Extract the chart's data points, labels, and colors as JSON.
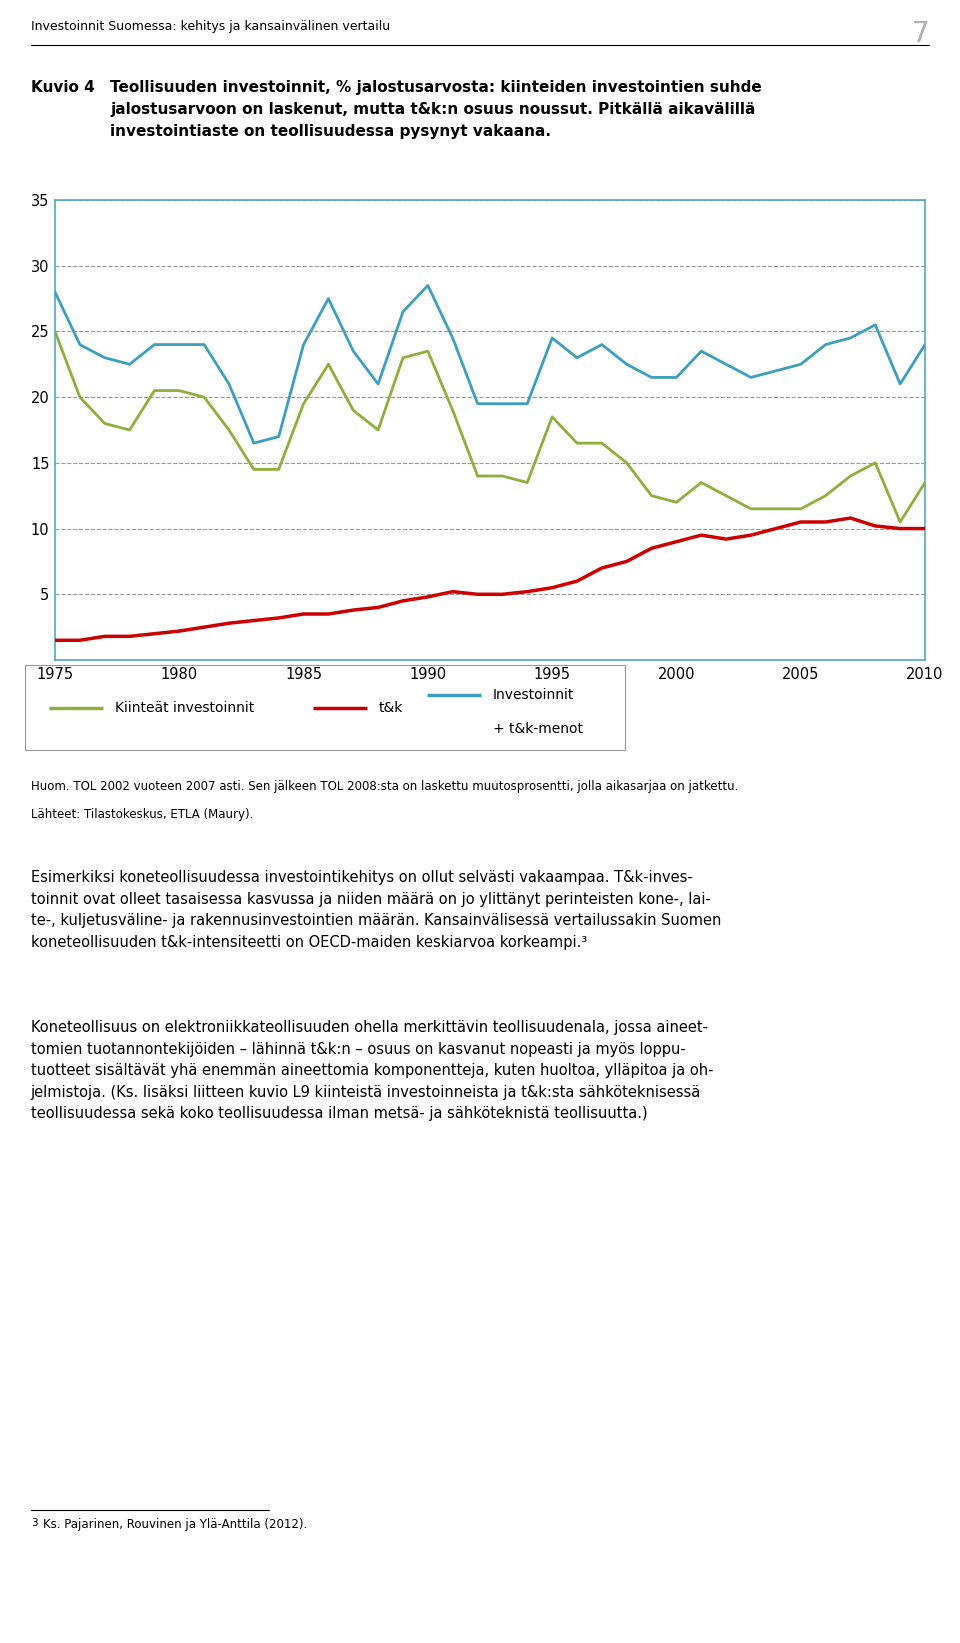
{
  "header": "Investoinnit Suomessa: kehitys ja kansainvälinen vertailu",
  "page_number": "7",
  "figure_label": "Kuvio 4",
  "figure_title_line1": "Teollisuuden investoinnit, % jalostusarvosta: kiinteiden investointien suhde",
  "figure_title_line2": "jalostusarvoon on laskenut, mutta t&k:n osuus noussut. Pitkällä aikavälillä",
  "figure_title_line3": "investointiaste on teollisuudessa pysynyt vakaana.",
  "years": [
    1975,
    1976,
    1977,
    1978,
    1979,
    1980,
    1981,
    1982,
    1983,
    1984,
    1985,
    1986,
    1987,
    1988,
    1989,
    1990,
    1991,
    1992,
    1993,
    1994,
    1995,
    1996,
    1997,
    1998,
    1999,
    2000,
    2001,
    2002,
    2003,
    2004,
    2005,
    2006,
    2007,
    2008,
    2009,
    2010
  ],
  "kiinteat": [
    25.0,
    20.0,
    18.0,
    17.5,
    20.5,
    20.5,
    20.0,
    17.5,
    14.5,
    14.5,
    19.5,
    22.5,
    19.0,
    17.5,
    23.0,
    23.5,
    19.0,
    14.0,
    14.0,
    13.5,
    18.5,
    16.5,
    16.5,
    15.0,
    12.5,
    12.0,
    13.5,
    12.5,
    11.5,
    11.5,
    11.5,
    12.5,
    14.0,
    15.0,
    10.5,
    13.5
  ],
  "tk": [
    1.5,
    1.5,
    1.8,
    1.8,
    2.0,
    2.2,
    2.5,
    2.8,
    3.0,
    3.2,
    3.5,
    3.5,
    3.8,
    4.0,
    4.5,
    4.8,
    5.2,
    5.0,
    5.0,
    5.2,
    5.5,
    6.0,
    7.0,
    7.5,
    8.5,
    9.0,
    9.5,
    9.2,
    9.5,
    10.0,
    10.5,
    10.5,
    10.8,
    10.2,
    10.0,
    10.0
  ],
  "investoinnit_tk": [
    28.0,
    24.0,
    23.0,
    22.5,
    24.0,
    24.0,
    24.0,
    21.0,
    16.5,
    17.0,
    24.0,
    27.5,
    23.5,
    21.0,
    26.5,
    28.5,
    24.5,
    19.5,
    19.5,
    19.5,
    24.5,
    23.0,
    24.0,
    22.5,
    21.5,
    21.5,
    23.5,
    22.5,
    21.5,
    22.0,
    22.5,
    24.0,
    24.5,
    25.5,
    21.0,
    24.0
  ],
  "ylim": [
    0,
    35
  ],
  "yticks": [
    0,
    5,
    10,
    15,
    20,
    25,
    30,
    35
  ],
  "xticks": [
    1975,
    1980,
    1985,
    1990,
    1995,
    2000,
    2005,
    2010
  ],
  "color_kiinteat": "#8faf3c",
  "color_tk": "#cc0000",
  "color_investoinnit": "#3d9fbf",
  "legend_label_kiinteat": "Kiinteät investoinnit",
  "legend_label_tk": "t&k",
  "legend_label_investoinnit": "Investoinnit\n+ t&k-menot",
  "note1": "Huom. TOL 2002 vuoteen 2007 asti. Sen jälkeen TOL 2008:sta on laskettu muutosprosentti, jolla aikasarjaa on jatkettu.",
  "note2": "Lähteet: Tilastokeskus, ETLA (Maury).",
  "body_text1": "Esimerkiksi koneteollisuudessa investointikehitys on ollut selvästi vakaampaa. T&k-inves-\ntoinnit ovat olleet tasaisessa kasvussa ja niiden määrä on jo ylittänyt perinteisten kone-, lai-\nte-, kuljetusväline- ja rakennusinvestointien määrän. Kansainvälisessä vertailussakin Suomen\nkoneteollisuuden t&k-intensiteetti on OECD-maiden keskiarvoa korkeampi.³",
  "body_text2": "Koneteollisuus on elektroniikkateollisuuden ohella merkittävin teollisuudenala, jossa aineet-\ntomien tuotannontekijöiden – lähinnä t&k:n – osuus on kasvanut nopeasti ja myös loppu-\ntuotteet sisältävät yhä enemmän aineettomia komponentteja, kuten huoltoa, ylläpitoa ja oh-\njelmistoja. (Ks. lisäksi liitteen kuvio L9 kiinteistä investoinneista ja t&k:sta sähköteknisessä\nteollisuudessa sekä koko teollisuudessa ilman metsä- ja sähköteknistä teollisuutta.)",
  "footnote_super": "3",
  "footnote_text": "   Ks. Pajarinen, Rouvinen ja Ylä-Anttila (2012)."
}
